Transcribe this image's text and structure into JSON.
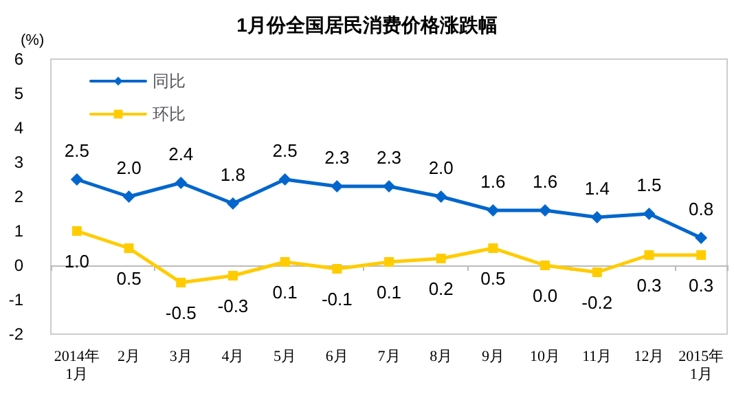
{
  "chart_data": {
    "type": "line",
    "title": "1月份全国居民消费价格涨跌幅",
    "ylabel": "(%)",
    "categories": [
      "2014年\n1月",
      "2月",
      "3月",
      "4月",
      "5月",
      "6月",
      "7月",
      "8月",
      "9月",
      "10月",
      "11月",
      "12月",
      "2015年\n1月"
    ],
    "series": [
      {
        "name": "同比",
        "color": "#0066cc",
        "marker": "diamond",
        "values": [
          2.5,
          2.0,
          2.4,
          1.8,
          2.5,
          2.3,
          2.3,
          2.0,
          1.6,
          1.6,
          1.4,
          1.5,
          0.8
        ],
        "value_labels": [
          "2.5",
          "2.0",
          "2.4",
          "1.8",
          "2.5",
          "2.3",
          "2.3",
          "2.0",
          "1.6",
          "1.6",
          "1.4",
          "1.5",
          "0.8"
        ]
      },
      {
        "name": "环比",
        "color": "#ffcc00",
        "marker": "square",
        "values": [
          1.0,
          0.5,
          -0.5,
          -0.3,
          0.1,
          -0.1,
          0.1,
          0.2,
          0.5,
          0.0,
          -0.2,
          0.3,
          0.3
        ],
        "value_labels": [
          "1.0",
          "0.5",
          "-0.5",
          "-0.3",
          "0.1",
          "-0.1",
          "0.1",
          "0.2",
          "0.5",
          "0.0",
          "-0.2",
          "0.3",
          "0.3"
        ]
      }
    ],
    "ylim": [
      -2,
      6
    ],
    "yticks": [
      -2,
      -1,
      0,
      1,
      2,
      3,
      4,
      5,
      6
    ],
    "legend": "top left",
    "line_style": "solid"
  }
}
